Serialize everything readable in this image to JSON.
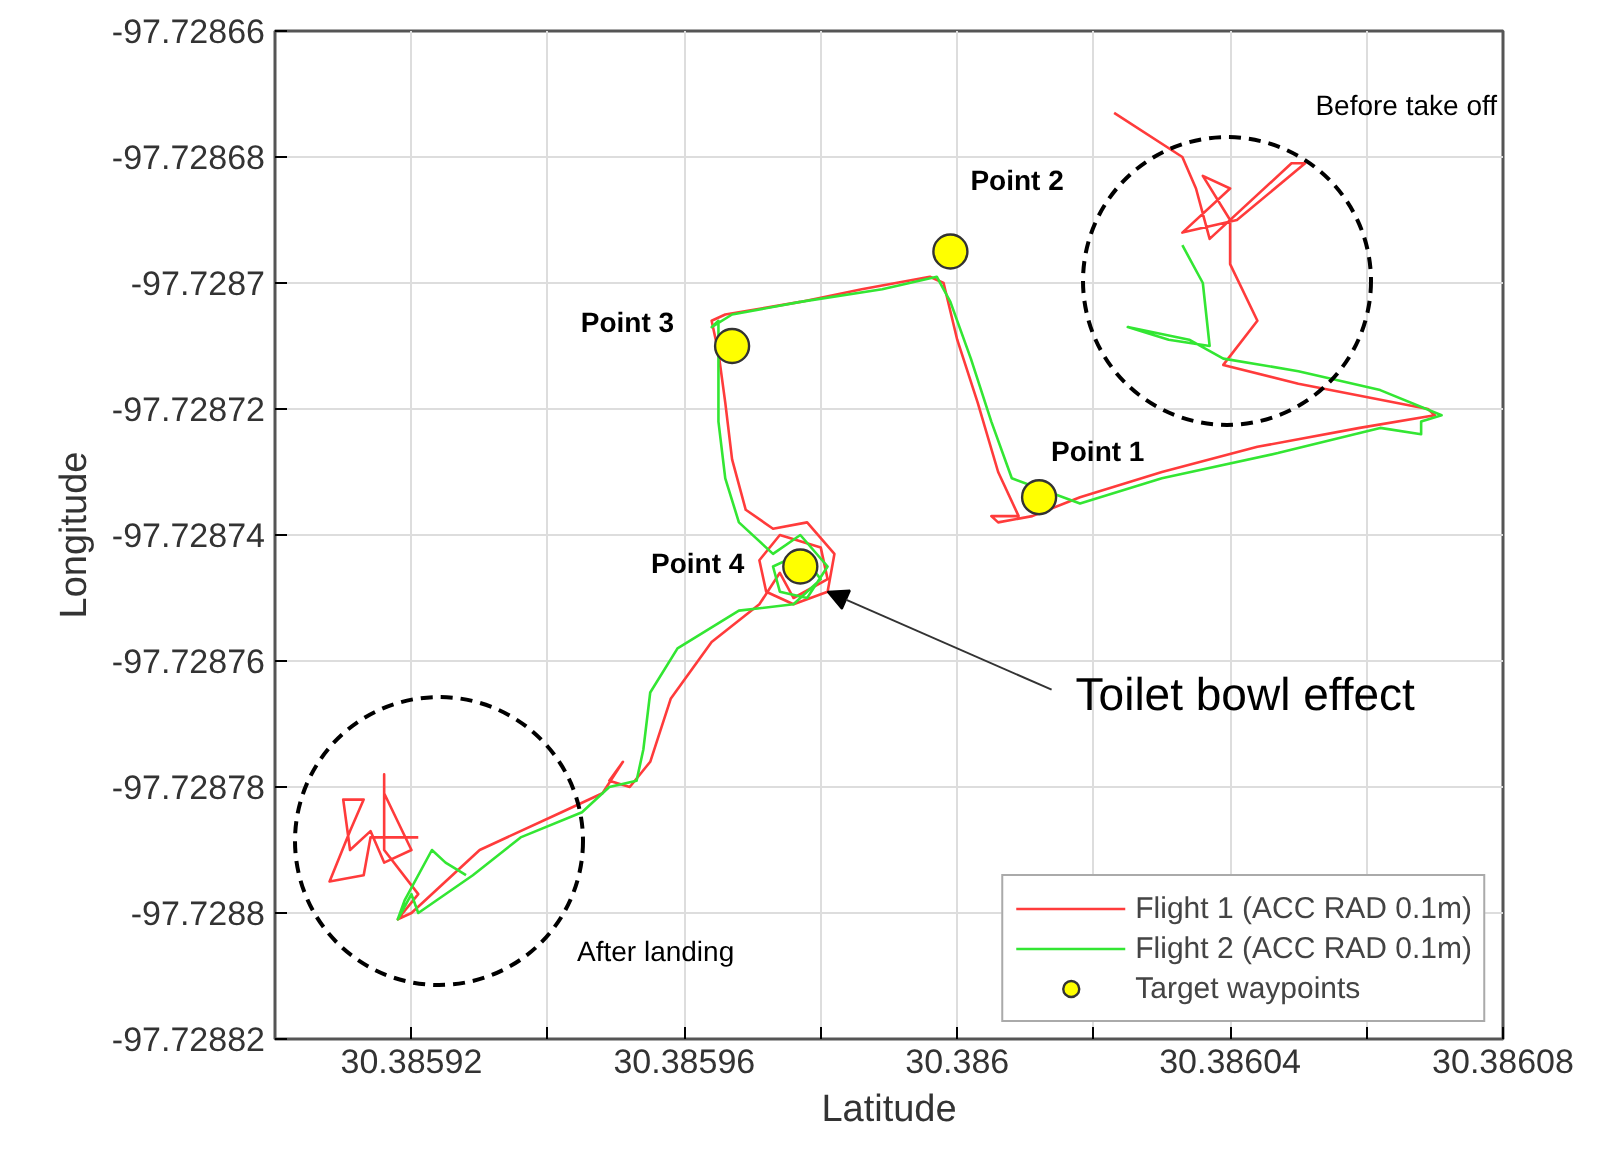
{
  "chart_data": {
    "type": "line",
    "xlabel": "Latitude",
    "ylabel": "Longitude",
    "xlim": [
      30.3859,
      30.38608
    ],
    "ylim": [
      -97.72882,
      -97.72866
    ],
    "xticks": [
      {
        "value": 30.3859,
        "label": null
      },
      30.38592,
      {
        "value": 30.38594,
        "label": null
      },
      30.38596,
      {
        "value": 30.38598,
        "label": null
      },
      30.386,
      {
        "value": 30.38602,
        "label": null
      },
      30.38604,
      {
        "value": 30.38606,
        "label": null
      },
      30.38608
    ],
    "yticks": [
      -97.72882,
      -97.7288,
      -97.72878,
      -97.72876,
      -97.72874,
      -97.72872,
      -97.7287,
      -97.72868,
      -97.72866
    ],
    "grid": true,
    "legend": "bottom right",
    "series": [
      {
        "name": "Flight 1 (ACC RAD 0.1m)",
        "color": "#ff3b3b",
        "x": [
          30.386023,
          30.386033,
          30.386035,
          30.386037,
          30.386049,
          30.386051,
          30.386041,
          30.386033,
          30.38604,
          30.386036,
          30.38604,
          30.38604,
          30.386044,
          30.386039,
          30.38605,
          30.386069,
          30.38607,
          30.386059,
          30.386044,
          30.38603,
          30.386018,
          30.386011,
          30.386006,
          30.386005,
          30.386009,
          30.386006,
          30.386003,
          30.386,
          30.385998,
          30.385996,
          30.385986,
          30.385977,
          30.385966,
          30.385964,
          30.385965,
          30.385966,
          30.385967,
          30.385969,
          30.385973,
          30.385978,
          30.385982,
          30.385981,
          30.385976,
          30.385972,
          30.385971,
          30.385974,
          30.38598,
          30.385981,
          30.385976,
          30.385974,
          30.385971,
          30.385964,
          30.385958,
          30.385955,
          30.385952,
          30.385949,
          30.385951,
          30.385948,
          30.385942,
          30.38593,
          30.38592,
          30.385918,
          30.385921,
          30.385916,
          30.385916,
          30.385916,
          30.38592,
          30.385916,
          30.385914,
          30.385911,
          30.38591,
          30.385913,
          30.385911,
          30.385908,
          30.385913,
          30.385914,
          30.385921
        ],
        "values": [
          -97.728673,
          -97.72868,
          -97.728685,
          -97.728693,
          -97.728681,
          -97.728681,
          -97.72869,
          -97.728692,
          -97.728685,
          -97.728683,
          -97.72869,
          -97.728697,
          -97.728706,
          -97.728713,
          -97.728716,
          -97.72872,
          -97.728721,
          -97.728723,
          -97.728726,
          -97.72873,
          -97.728734,
          -97.728737,
          -97.728738,
          -97.728737,
          -97.728737,
          -97.72873,
          -97.728719,
          -97.728709,
          -97.7287,
          -97.728699,
          -97.728701,
          -97.728703,
          -97.728705,
          -97.728706,
          -97.728711,
          -97.728719,
          -97.728728,
          -97.728736,
          -97.728739,
          -97.728738,
          -97.728743,
          -97.728749,
          -97.728751,
          -97.728749,
          -97.728744,
          -97.72874,
          -97.728742,
          -97.728747,
          -97.72875,
          -97.728746,
          -97.728751,
          -97.728757,
          -97.728766,
          -97.728776,
          -97.72878,
          -97.728779,
          -97.728776,
          -97.728781,
          -97.728784,
          -97.72879,
          -97.7288,
          -97.728801,
          -97.728797,
          -97.72879,
          -97.728778,
          -97.728781,
          -97.72879,
          -97.728792,
          -97.728787,
          -97.72879,
          -97.728782,
          -97.728782,
          -97.728787,
          -97.728795,
          -97.728794,
          -97.728788,
          -97.728788
        ]
      },
      {
        "name": "Flight 2 (ACC RAD 0.1m)",
        "color": "#33e633",
        "x": [
          30.386033,
          30.386036,
          30.386037,
          30.386031,
          30.386025,
          30.386034,
          30.386039,
          30.38605,
          30.386062,
          30.386071,
          30.386068,
          30.386068,
          30.386062,
          30.386047,
          30.38603,
          30.386018,
          30.386008,
          30.386005,
          30.386002,
          30.385999,
          30.385997,
          30.385989,
          30.385977,
          30.385967,
          30.385964,
          30.385965,
          30.385965,
          30.385965,
          30.385966,
          30.385968,
          30.385973,
          30.385977,
          30.385981,
          30.385978,
          30.385974,
          30.385973,
          30.385977,
          30.38598,
          30.385976,
          30.385968,
          30.385959,
          30.385955,
          30.385954,
          30.385953,
          30.385949,
          30.385945,
          30.385936,
          30.385929,
          30.385921,
          30.38592,
          30.385918,
          30.385919,
          30.385923,
          30.385925,
          30.385928
        ],
        "values": [
          -97.728694,
          -97.7287,
          -97.72871,
          -97.728709,
          -97.728707,
          -97.728709,
          -97.728712,
          -97.728714,
          -97.728717,
          -97.728721,
          -97.728722,
          -97.728724,
          -97.728723,
          -97.728727,
          -97.728731,
          -97.728735,
          -97.728731,
          -97.728722,
          -97.728712,
          -97.728703,
          -97.728699,
          -97.728701,
          -97.728703,
          -97.728705,
          -97.728707,
          -97.728706,
          -97.728712,
          -97.728722,
          -97.728731,
          -97.728738,
          -97.728743,
          -97.72874,
          -97.728745,
          -97.72875,
          -97.728749,
          -97.728745,
          -97.728743,
          -97.728747,
          -97.728751,
          -97.728752,
          -97.728758,
          -97.728765,
          -97.728774,
          -97.728779,
          -97.72878,
          -97.728784,
          -97.728788,
          -97.728794,
          -97.7288,
          -97.728797,
          -97.728801,
          -97.728798,
          -97.72879,
          -97.728792,
          -97.728794
        ]
      },
      {
        "name": "Target waypoints",
        "type": "scatter",
        "color": "#ffff00",
        "x": [
          30.386012,
          30.385999,
          30.385967,
          30.385977
        ],
        "values": [
          -97.728734,
          -97.728695,
          -97.72871,
          -97.728745
        ]
      }
    ],
    "annotations": [
      {
        "text": "Point 1",
        "x": 30.386012,
        "y": -97.728734
      },
      {
        "text": "Point 2",
        "x": 30.385999,
        "y": -97.728695
      },
      {
        "text": "Point 3",
        "x": 30.385967,
        "y": -97.72871
      },
      {
        "text": "Point 4",
        "x": 30.385977,
        "y": -97.728745
      },
      "Before take off",
      "After landing",
      {
        "text": "Toilet bowl effect",
        "x": 30.385981,
        "y": -97.728749
      }
    ]
  }
}
